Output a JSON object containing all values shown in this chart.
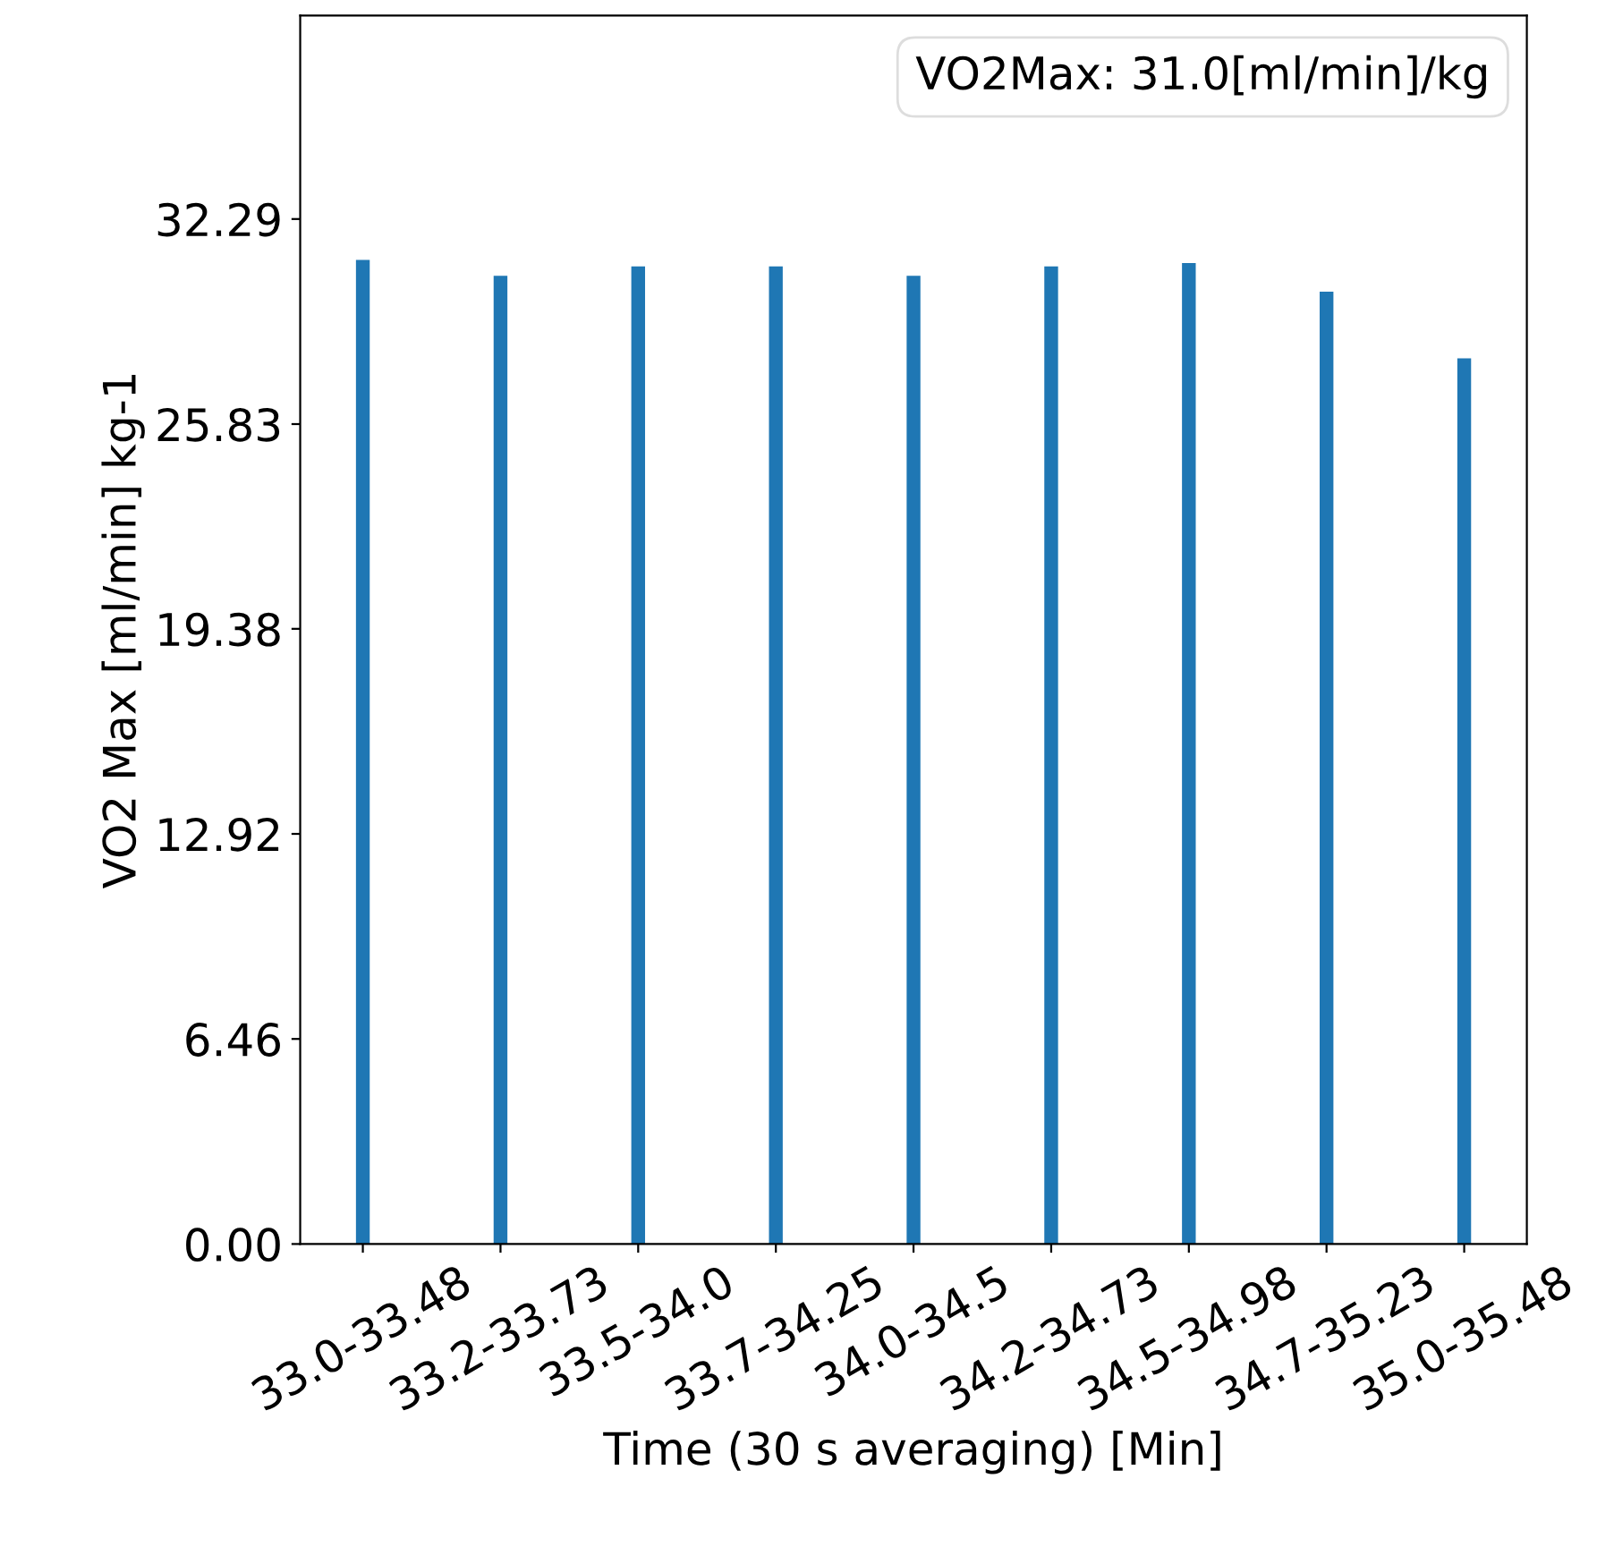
{
  "chart_data": {
    "type": "bar",
    "xlabel": "Time (30 s averaging) [Min]",
    "ylabel": "VO2 Max [ml/min] kg-1",
    "categories": [
      "33.0-33.48",
      "33.2-33.73",
      "33.5-34.0",
      "33.7-34.25",
      "34.0-34.5",
      "34.2-34.73",
      "34.5-34.98",
      "34.7-35.23",
      "35.0-35.48"
    ],
    "values": [
      31.0,
      30.5,
      30.8,
      30.8,
      30.5,
      30.8,
      30.9,
      30.0,
      27.9
    ],
    "color": "#1f77b4",
    "ylim": [
      0,
      38.7
    ],
    "yticks": [
      {
        "value": 0,
        "label": "0.00"
      },
      {
        "value": 6.46,
        "label": "6.46"
      },
      {
        "value": 12.92,
        "label": "12.92"
      },
      {
        "value": 19.38,
        "label": "19.38"
      },
      {
        "value": 25.83,
        "label": "25.83"
      },
      {
        "value": 32.29,
        "label": "32.29"
      }
    ],
    "annotations": [
      "VO2Max: 31.0[ml/min]/kg"
    ],
    "grid": false
  }
}
